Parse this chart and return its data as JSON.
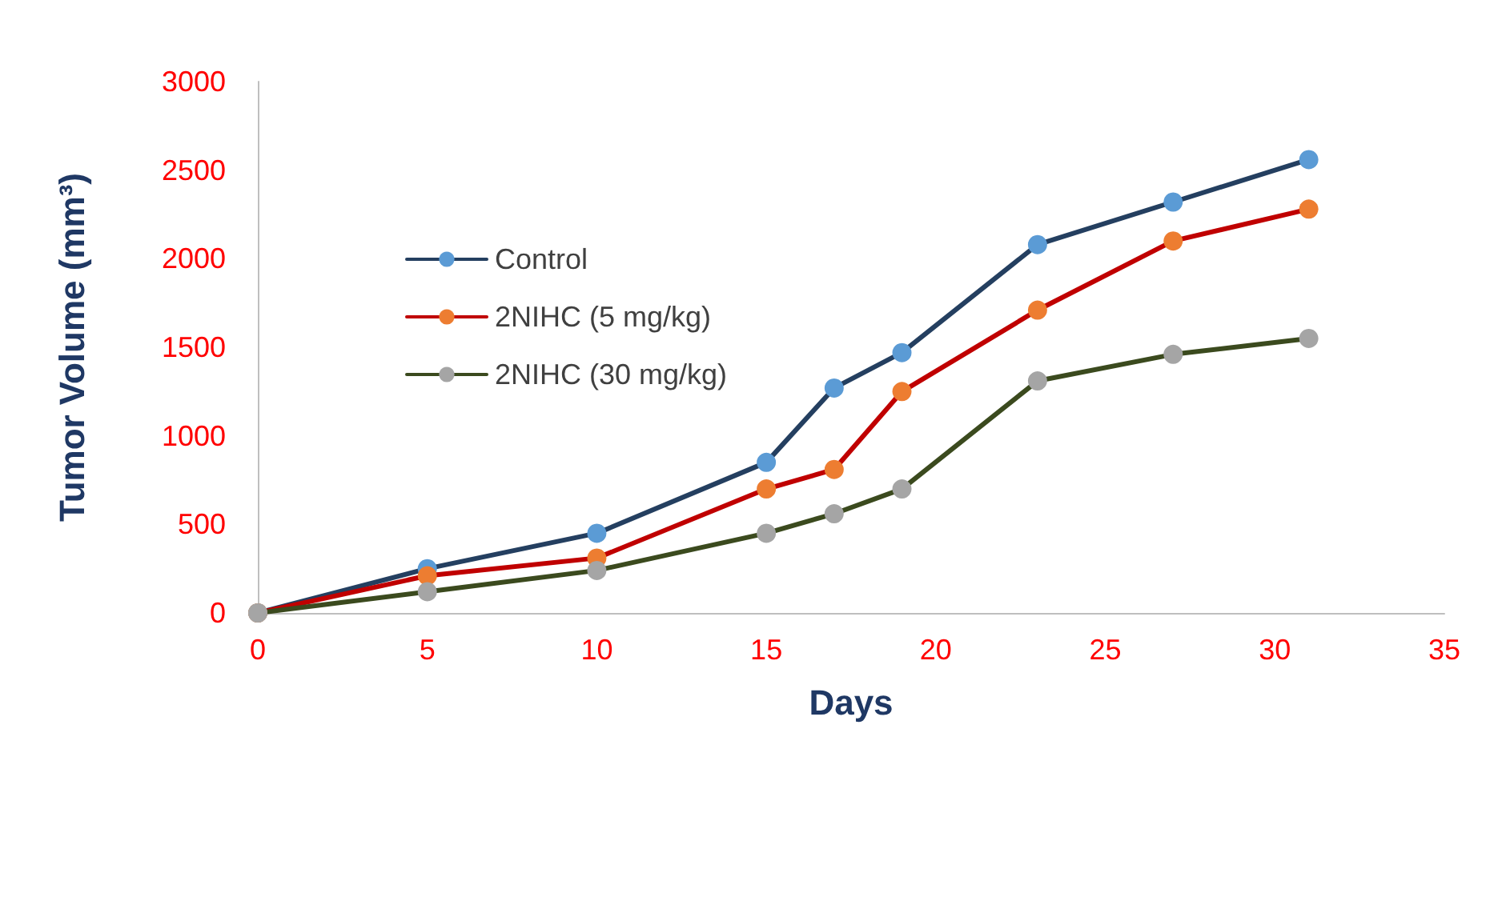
{
  "chart_data": {
    "type": "line",
    "xlabel": "Days",
    "ylabel": "Tumor Volume (mm³)",
    "x": [
      0,
      5,
      10,
      15,
      17,
      19,
      23,
      27,
      31
    ],
    "series": [
      {
        "name": "Control",
        "color": "#243f60",
        "colors": [
          "#5b9bd5",
          "#5b9bd5",
          "#5b9bd5",
          "#5b9bd5",
          "#5b9bd5",
          "#5b9bd5",
          "#5b9bd5",
          "#5b9bd5",
          "#5b9bd5"
        ],
        "values": [
          0,
          250,
          450,
          850,
          1270,
          1470,
          2080,
          2320,
          2560
        ]
      },
      {
        "name": "2NIHC (5 mg/kg)",
        "color": "#c00000",
        "colors": [
          "#ed7d31",
          "#ed7d31",
          "#ed7d31",
          "#ed7d31",
          "#ed7d31",
          "#ed7d31",
          "#ed7d31",
          "#ed7d31",
          "#ed7d31"
        ],
        "values": [
          0,
          210,
          310,
          700,
          810,
          1250,
          1710,
          2100,
          2280
        ]
      },
      {
        "name": "2NIHC (30 mg/kg)",
        "color": "#3b4a1e",
        "colors": [
          "#a5a5a5",
          "#a5a5a5",
          "#a5a5a5",
          "#a5a5a5",
          "#a5a5a5",
          "#a5a5a5",
          "#a5a5a5",
          "#a5a5a5",
          "#a5a5a5"
        ],
        "values": [
          0,
          120,
          240,
          450,
          560,
          700,
          1310,
          1460,
          1550
        ]
      }
    ],
    "xlim": [
      0,
      35
    ],
    "xticks": [
      0,
      5,
      10,
      15,
      20,
      25,
      30,
      35
    ],
    "ylim": [
      0,
      3000
    ],
    "yticks": [
      0,
      500,
      1000,
      1500,
      2000,
      2500,
      3000
    ],
    "grid": false,
    "legend": "top left",
    "marker": "circle",
    "line_style": "solid"
  }
}
